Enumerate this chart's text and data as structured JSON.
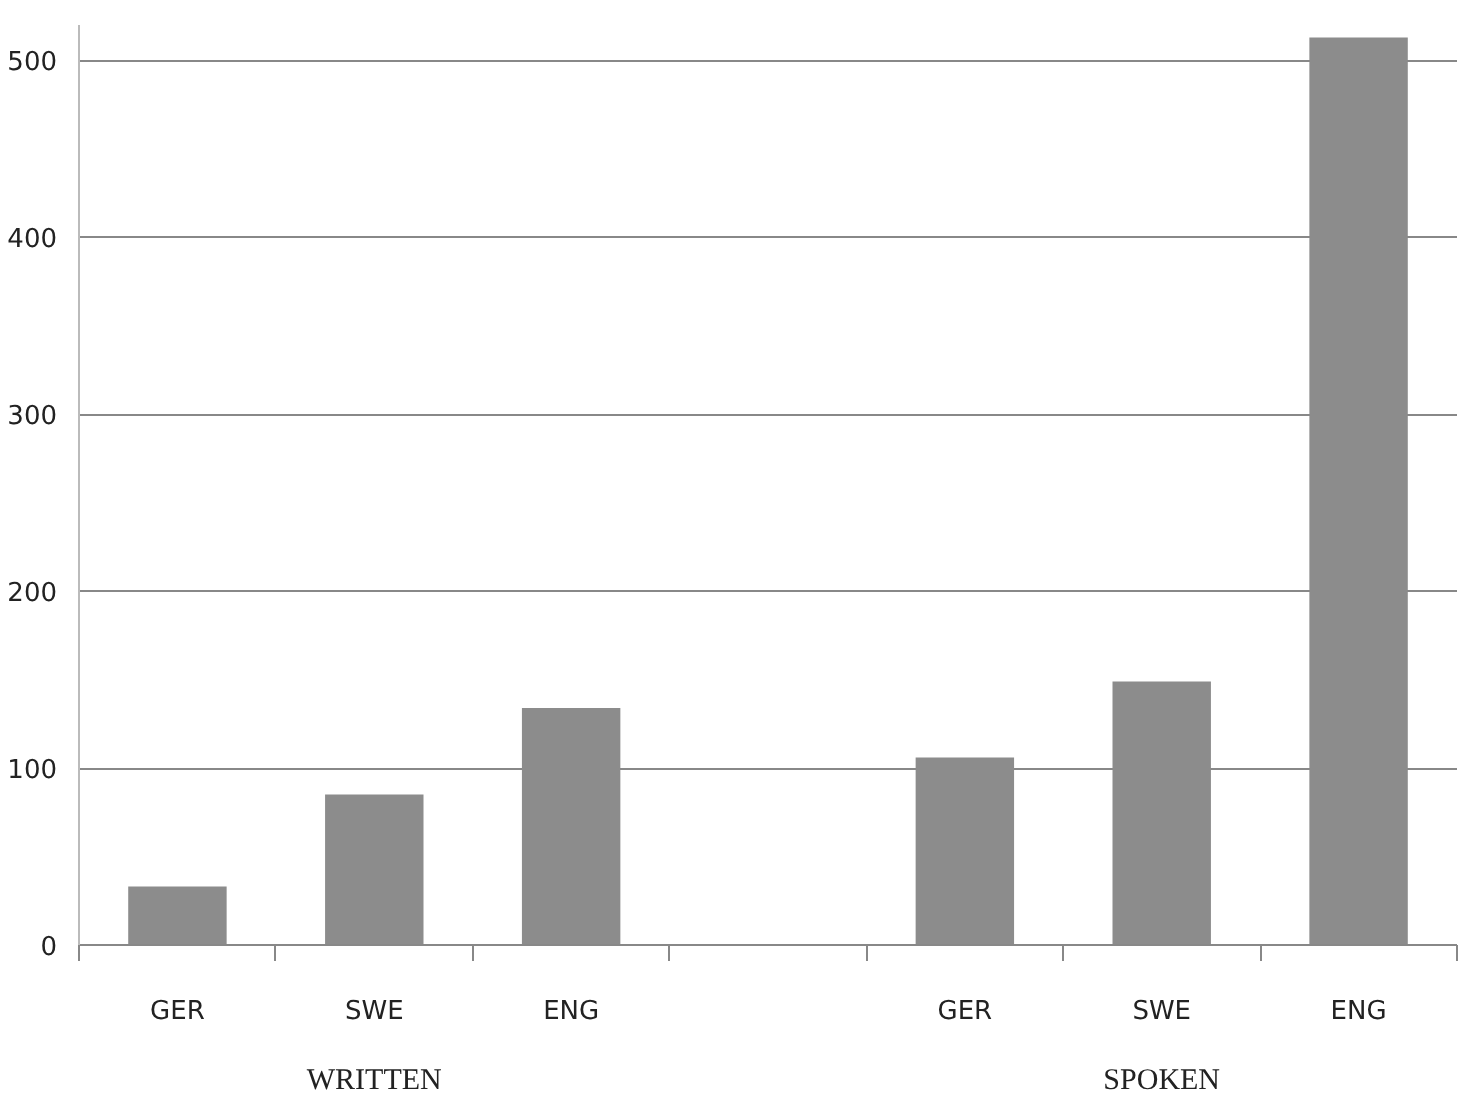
{
  "chart_data": {
    "type": "bar",
    "categories": [
      "GER",
      "SWE",
      "ENG",
      null,
      "GER",
      "SWE",
      "ENG"
    ],
    "values": [
      33,
      85,
      134,
      null,
      106,
      149,
      513
    ],
    "color": "#8c8c8c",
    "ylim": [
      0,
      520
    ],
    "yticks": [
      0,
      100,
      200,
      300,
      400,
      500
    ],
    "grid": "y",
    "annotations": [
      "WRITTEN",
      "SPOKEN"
    ]
  }
}
